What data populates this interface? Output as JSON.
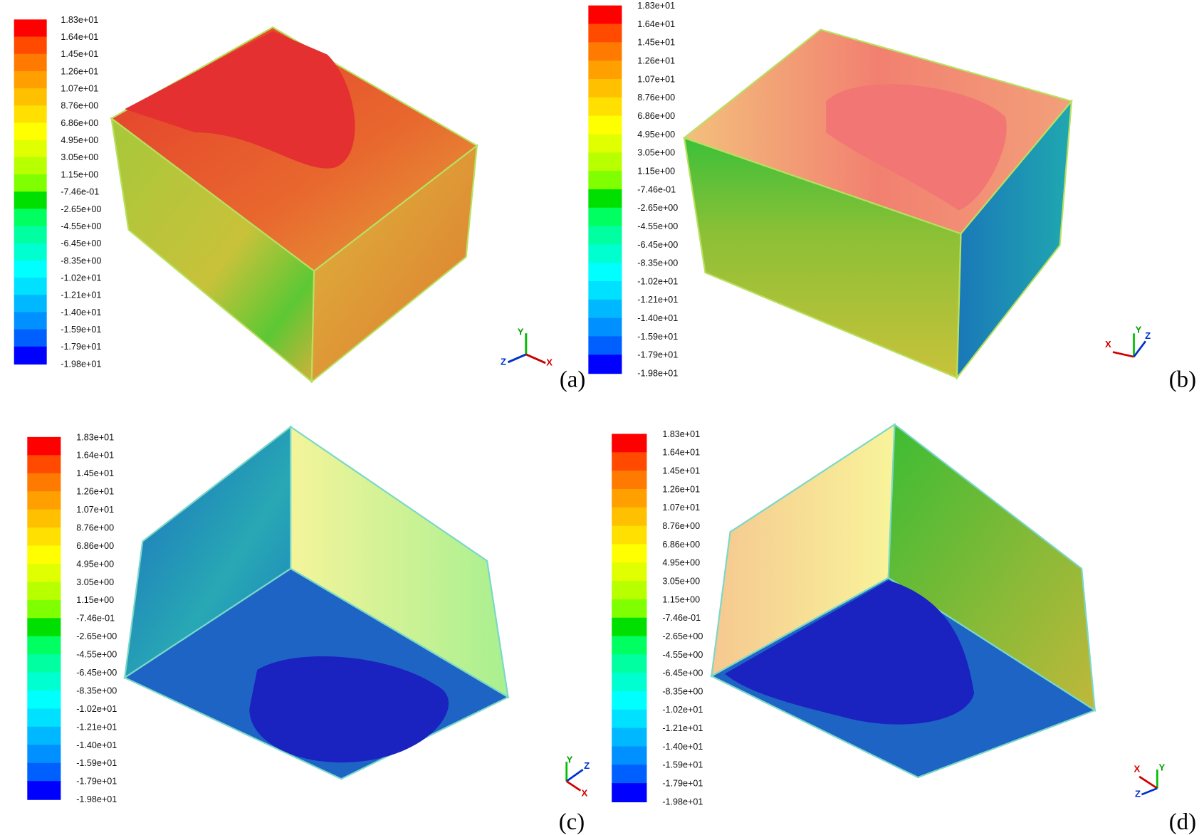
{
  "colorbar": {
    "labels": [
      "1.83e+01",
      "1.64e+01",
      "1.45e+01",
      "1.26e+01",
      "1.07e+01",
      "8.76e+00",
      "6.86e+00",
      "4.95e+00",
      "3.05e+00",
      "1.15e+00",
      "-7.46e-01",
      "-2.65e+00",
      "-4.55e+00",
      "-6.45e+00",
      "-8.35e+00",
      "-1.02e+01",
      "-1.21e+01",
      "-1.40e+01",
      "-1.59e+01",
      "-1.79e+01",
      "-1.98e+01"
    ],
    "colors": [
      "#ff0000",
      "#ff4a00",
      "#ff7a00",
      "#ffa000",
      "#ffc000",
      "#ffe000",
      "#ffff00",
      "#e0ff00",
      "#b8ff00",
      "#80ff00",
      "#00e000",
      "#00ff60",
      "#00ffa0",
      "#00ffd0",
      "#00ffff",
      "#00e0ff",
      "#00b8ff",
      "#0090ff",
      "#0060ff",
      "#0000ff"
    ]
  },
  "panels": [
    {
      "label": "(a)",
      "axes": [
        "Y",
        "Z",
        "X"
      ]
    },
    {
      "label": "(b)",
      "axes": [
        "Y",
        "X",
        "Z"
      ]
    },
    {
      "label": "(c)",
      "axes": [
        "Y",
        "Z",
        "X"
      ]
    },
    {
      "label": "(d)",
      "axes": [
        "Y",
        "X",
        "Z"
      ]
    }
  ]
}
